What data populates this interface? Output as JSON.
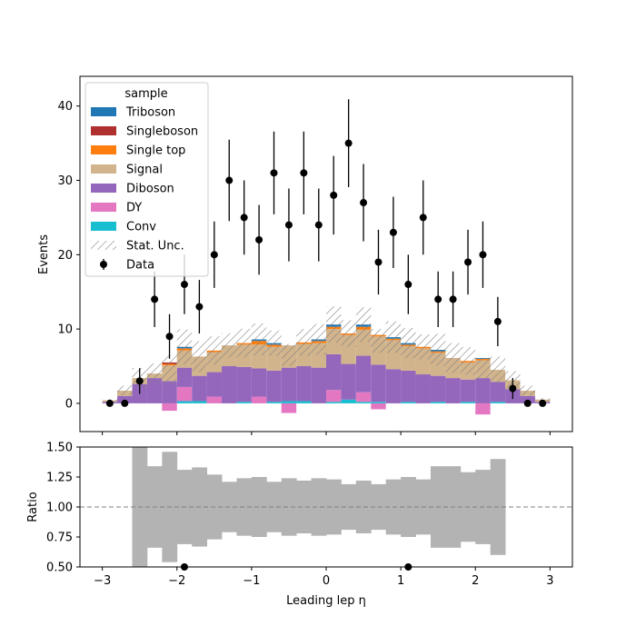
{
  "chart_data": [
    {
      "type": "bar",
      "subtype": "stacked-histogram-with-data",
      "ylabel": "Events",
      "ylim": [
        -3.8,
        44
      ],
      "yticks": [
        0,
        10,
        20,
        30,
        40
      ],
      "xlim": [
        -3.3,
        3.3
      ],
      "bin_edges": [
        -3.0,
        -2.8,
        -2.6,
        -2.4,
        -2.2,
        -2.0,
        -1.8,
        -1.6,
        -1.4,
        -1.2,
        -1.0,
        -0.8,
        -0.6,
        -0.4,
        -0.2,
        0.0,
        0.2,
        0.4,
        0.6,
        0.8,
        1.0,
        1.2,
        1.4,
        1.6,
        1.8,
        2.0,
        2.2,
        2.4,
        2.6,
        2.8,
        3.0
      ],
      "series": [
        {
          "name": "Conv",
          "color": "#17becf",
          "values": [
            0,
            0,
            0,
            0,
            0,
            0.3,
            0.3,
            0,
            0,
            0.2,
            0,
            0.2,
            0.3,
            0.3,
            0,
            0.2,
            0.5,
            0.2,
            0.2,
            0,
            0.2,
            0,
            0.2,
            0,
            0.2,
            0,
            0.2,
            0,
            0,
            0
          ]
        },
        {
          "name": "DY",
          "color": "#e377c2",
          "values": [
            0,
            0,
            0,
            0,
            -1.0,
            1.9,
            0,
            0.9,
            0,
            0,
            0.9,
            0,
            -1.3,
            0,
            0,
            1.6,
            0,
            1.3,
            -0.8,
            0,
            0,
            0,
            0,
            0,
            0,
            -1.5,
            0,
            0,
            0,
            0
          ]
        },
        {
          "name": "Diboson",
          "color": "#9467bd",
          "values": [
            0.2,
            1.0,
            2.6,
            3.4,
            3.0,
            2.6,
            3.4,
            3.3,
            5.0,
            4.7,
            3.8,
            4.2,
            4.5,
            4.7,
            4.8,
            4.8,
            4.8,
            4.9,
            5.0,
            4.6,
            4.2,
            3.9,
            3.5,
            3.4,
            3.0,
            3.4,
            2.7,
            1.9,
            1.0,
            0.2
          ]
        },
        {
          "name": "Signal",
          "color": "#d2b48c",
          "values": [
            0.2,
            0.7,
            0.8,
            0.6,
            2.1,
            2.3,
            2.6,
            2.7,
            2.8,
            3.0,
            3.2,
            3.2,
            3.0,
            3.0,
            3.3,
            3.4,
            3.9,
            3.5,
            3.8,
            3.9,
            3.3,
            3.5,
            3.1,
            2.7,
            2.3,
            2.4,
            1.6,
            1.2,
            0.7,
            0.3
          ]
        },
        {
          "name": "Single top",
          "color": "#ff7f0e",
          "values": [
            0,
            0,
            0,
            0,
            0.2,
            0.3,
            0,
            0.2,
            0,
            0.2,
            0.5,
            0.3,
            0,
            0.2,
            0.3,
            0.3,
            0.2,
            0.4,
            0.2,
            0.2,
            0.2,
            0.2,
            0.2,
            0,
            0.2,
            0.2,
            0,
            0,
            0,
            0
          ]
        },
        {
          "name": "Singleboson",
          "color": "#b03030",
          "values": [
            0,
            0,
            0,
            0,
            0.2,
            0,
            0,
            0,
            0,
            0,
            0,
            0,
            0,
            0,
            0,
            0,
            0,
            0,
            0,
            0,
            0,
            0,
            0,
            0,
            0,
            0,
            0,
            0,
            0,
            0
          ]
        },
        {
          "name": "Triboson",
          "color": "#1f77b4",
          "values": [
            0,
            0,
            0,
            0,
            0,
            0.2,
            0,
            0,
            0,
            0,
            0.2,
            0.2,
            0,
            0,
            0.2,
            0.3,
            0,
            0.3,
            0,
            0.2,
            0.2,
            0,
            0.2,
            0,
            0,
            0.1,
            0,
            0,
            0,
            0
          ]
        }
      ],
      "stat_unc_fraction": [
        0.4,
        0.4,
        0.4,
        0.34,
        0.45,
        0.31,
        0.33,
        0.27,
        0.21,
        0.24,
        0.25,
        0.21,
        0.23,
        0.22,
        0.24,
        0.23,
        0.19,
        0.22,
        0.19,
        0.24,
        0.25,
        0.22,
        0.3,
        0.33,
        0.33,
        0.33,
        0.4,
        0.4,
        0.4,
        0.4
      ],
      "data": {
        "name": "Data",
        "x": [
          -2.9,
          -2.7,
          -2.5,
          -2.3,
          -2.1,
          -1.9,
          -1.7,
          -1.5,
          -1.3,
          -1.1,
          -0.9,
          -0.7,
          -0.5,
          -0.3,
          -0.1,
          0.1,
          0.3,
          0.5,
          0.7,
          0.9,
          1.1,
          1.3,
          1.5,
          1.7,
          1.9,
          2.1,
          2.3,
          2.5,
          2.7,
          2.9
        ],
        "y": [
          0,
          0,
          3,
          14,
          9,
          16,
          13,
          20,
          30,
          25,
          22,
          31,
          24,
          31,
          24,
          28,
          35,
          27,
          19,
          23,
          16,
          25,
          14,
          14,
          19,
          20,
          11,
          2,
          0,
          0
        ]
      },
      "legend": {
        "title": "sample",
        "placement": "top-left",
        "entries": [
          "Triboson",
          "Singleboson",
          "Single top",
          "Signal",
          "Diboson",
          "DY",
          "Conv",
          "Stat. Unc.",
          "Data"
        ]
      }
    },
    {
      "type": "bar",
      "subtype": "ratio-panel",
      "ylabel": "Ratio",
      "xlabel": "Leading lep η",
      "ylim": [
        0.5,
        1.5
      ],
      "yticks": [
        "0.50",
        "0.75",
        "1.00",
        "1.25",
        "1.50"
      ],
      "xticks": [
        "−3",
        "−2",
        "−1",
        "0",
        "1",
        "2",
        "3"
      ],
      "xtick_values": [
        -3,
        -2,
        -1,
        0,
        1,
        2,
        3
      ],
      "reference_line": 1.0,
      "band_bin_edges": [
        -2.6,
        -2.4,
        -2.2,
        -2.0,
        -1.8,
        -1.6,
        -1.4,
        -1.2,
        -1.0,
        -0.8,
        -0.6,
        -0.4,
        -0.2,
        0.0,
        0.2,
        0.4,
        0.6,
        0.8,
        1.0,
        1.2,
        1.4,
        1.6,
        1.8,
        2.0,
        2.2,
        2.4
      ],
      "band_halfwidth": [
        0.6,
        0.34,
        0.46,
        0.31,
        0.33,
        0.27,
        0.21,
        0.24,
        0.25,
        0.21,
        0.24,
        0.22,
        0.24,
        0.23,
        0.19,
        0.22,
        0.19,
        0.23,
        0.25,
        0.23,
        0.34,
        0.34,
        0.29,
        0.31,
        0.4
      ],
      "band_color": "#b3b3b3",
      "ratio_points": {
        "x": [
          -1.9,
          1.1
        ],
        "y": [
          0.5,
          0.5
        ]
      }
    }
  ]
}
